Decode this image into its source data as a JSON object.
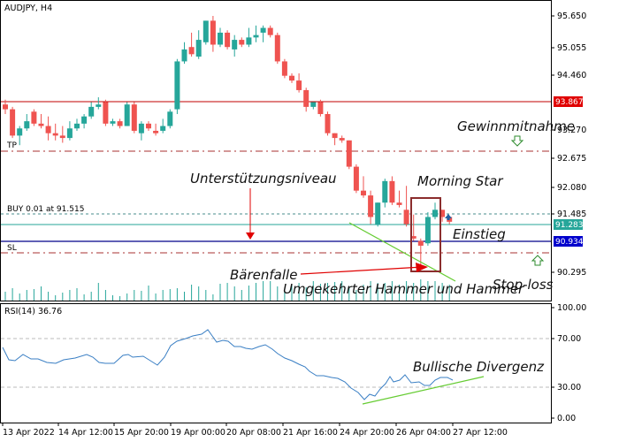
{
  "header": {
    "symbol_title": "AUDJPY, H4"
  },
  "colors": {
    "bull": "#26a69a",
    "bear": "#ef5350",
    "resistance": "#c00000",
    "tp_sl": "#a83232",
    "buy_line": "#4a8c8c",
    "current_price": "#26a69a",
    "support_line": "#00008b",
    "green_trend": "#66cc33",
    "rsi_line": "#3a7fc4",
    "box": "#8b2d2d",
    "arrow_red": "#e00000"
  },
  "price_axis": {
    "ticks": [
      "95.650",
      "95.055",
      "94.460",
      "93.270",
      "92.675",
      "92.080",
      "91.485",
      "90.295"
    ],
    "resistance_label": "93.867",
    "current_label": "91.283",
    "support_label": "90.934"
  },
  "lines": {
    "tp_label": "TP",
    "buy_label": "BUY 0.01 at 91.515",
    "sl_label": "SL"
  },
  "annotations": {
    "take_profit": "Gewinnmitnahme",
    "support_level": "Unterstützungsniveau",
    "morning_star": "Morning Star",
    "entry": "Einstieg",
    "bear_trap": "Bärenfalle",
    "hammer": "Umgekehrter Hammer und Hammer",
    "stop_loss": "Stop-loss",
    "divergence": "Bullische Divergenz"
  },
  "rsi": {
    "label": "RSI(14) 36.76",
    "ticks": [
      "100.00",
      "70.00",
      "30.00",
      "0.00"
    ]
  },
  "time_axis": {
    "ticks": [
      "13 Apr 2022",
      "14 Apr 12:00",
      "15 Apr 20:00",
      "19 Apr 00:00",
      "20 Apr 08:00",
      "21 Apr 16:00",
      "24 Apr 20:00",
      "26 Apr 04:00",
      "27 Apr 12:00"
    ]
  },
  "chart_data": {
    "type": "candlestick",
    "title": "AUDJPY, H4",
    "y_range": [
      89.9,
      95.9
    ],
    "levels": {
      "resistance": 93.867,
      "take_profit": 92.9,
      "buy": 91.515,
      "current": 91.283,
      "support": 90.934,
      "stop_loss": 90.75
    },
    "candles": [
      [
        93.8,
        93.7,
        93.9,
        93.6
      ],
      [
        93.7,
        93.15,
        93.75,
        93.1
      ],
      [
        93.15,
        93.3,
        93.35,
        92.95
      ],
      [
        93.3,
        93.45,
        93.6,
        93.25
      ],
      [
        93.65,
        93.4,
        93.7,
        93.35
      ],
      [
        93.4,
        93.35,
        93.6,
        93.3
      ],
      [
        93.35,
        93.2,
        93.55,
        93.05
      ],
      [
        93.2,
        93.15,
        93.4,
        93.05
      ],
      [
        93.15,
        93.1,
        93.35,
        93.0
      ],
      [
        93.1,
        93.3,
        93.45,
        93.05
      ],
      [
        93.3,
        93.4,
        93.5,
        93.25
      ],
      [
        93.4,
        93.55,
        93.6,
        93.3
      ],
      [
        93.55,
        93.75,
        93.85,
        93.5
      ],
      [
        93.75,
        93.8,
        93.95,
        93.7
      ],
      [
        93.85,
        93.4,
        93.9,
        93.35
      ],
      [
        93.4,
        93.45,
        93.5,
        93.35
      ],
      [
        93.45,
        93.35,
        93.5,
        93.3
      ],
      [
        93.35,
        93.8,
        93.85,
        93.35
      ],
      [
        93.8,
        93.25,
        93.85,
        93.2
      ],
      [
        93.2,
        93.4,
        93.45,
        93.05
      ],
      [
        93.4,
        93.3,
        93.45,
        93.25
      ],
      [
        93.25,
        93.2,
        93.4,
        93.15
      ],
      [
        93.25,
        93.35,
        93.5,
        93.2
      ],
      [
        93.35,
        93.65,
        93.7,
        93.3
      ],
      [
        93.7,
        94.7,
        94.75,
        93.6
      ],
      [
        94.7,
        94.95,
        95.1,
        94.65
      ],
      [
        95.0,
        94.85,
        95.3,
        94.8
      ],
      [
        94.8,
        95.15,
        95.35,
        94.75
      ],
      [
        95.1,
        95.55,
        95.55,
        95.05
      ],
      [
        95.55,
        95.05,
        95.65,
        94.9
      ],
      [
        95.05,
        95.3,
        95.4,
        95.0
      ],
      [
        95.3,
        95.0,
        95.35,
        94.95
      ],
      [
        94.95,
        95.15,
        95.25,
        94.8
      ],
      [
        95.15,
        95.05,
        95.2,
        95.0
      ],
      [
        95.05,
        95.2,
        95.4,
        95.0
      ],
      [
        95.2,
        95.25,
        95.45,
        95.1
      ],
      [
        95.3,
        95.4,
        95.45,
        95.1
      ],
      [
        95.4,
        95.25,
        95.45,
        95.2
      ],
      [
        95.25,
        94.7,
        95.3,
        94.65
      ],
      [
        94.7,
        94.4,
        94.75,
        94.35
      ],
      [
        94.4,
        94.3,
        94.45,
        94.25
      ],
      [
        94.3,
        94.1,
        94.45,
        94.05
      ],
      [
        94.1,
        93.75,
        94.15,
        93.65
      ],
      [
        93.75,
        93.85,
        93.85,
        93.7
      ],
      [
        93.85,
        93.6,
        93.9,
        93.55
      ],
      [
        93.6,
        93.2,
        93.65,
        93.15
      ],
      [
        93.2,
        93.1,
        93.2,
        92.95
      ],
      [
        93.1,
        93.05,
        93.15,
        93.0
      ],
      [
        93.05,
        92.5,
        93.05,
        92.45
      ],
      [
        92.5,
        92.0,
        92.55,
        91.95
      ],
      [
        92.0,
        91.9,
        92.3,
        91.85
      ],
      [
        91.9,
        91.45,
        92.0,
        91.3
      ],
      [
        91.3,
        91.75,
        91.75,
        91.25
      ],
      [
        91.75,
        92.2,
        92.25,
        91.65
      ],
      [
        92.2,
        91.75,
        92.3,
        91.7
      ],
      [
        91.75,
        91.7,
        92.0,
        91.65
      ],
      [
        91.6,
        91.3,
        92.1,
        91.25
      ],
      [
        91.05,
        91.0,
        91.5,
        90.95
      ],
      [
        90.95,
        90.85,
        91.0,
        90.4
      ],
      [
        90.9,
        91.45,
        91.55,
        90.85
      ],
      [
        91.45,
        91.6,
        91.75,
        91.4
      ],
      [
        91.6,
        91.45,
        91.6,
        91.35
      ],
      [
        91.45,
        91.35,
        91.45,
        91.3
      ]
    ]
  }
}
